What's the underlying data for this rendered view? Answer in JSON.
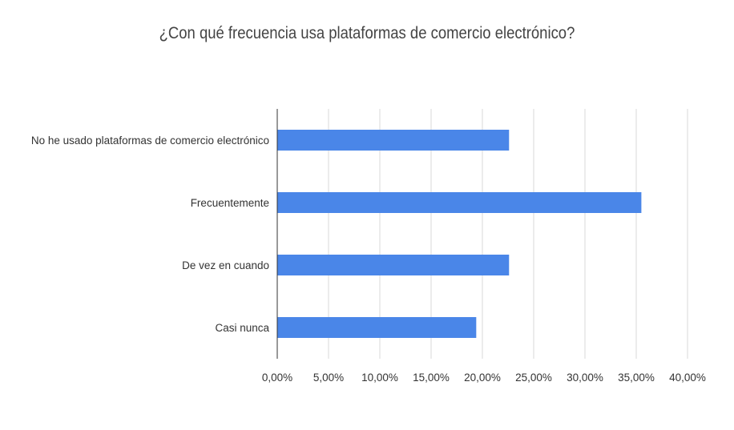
{
  "chart_data": {
    "type": "bar",
    "orientation": "horizontal",
    "title": "¿Con qué frecuencia usa plataformas de comercio electrónico?",
    "categories": [
      "No he usado plataformas de comercio electrónico",
      "Frecuentemente",
      "De vez en cuando",
      "Casi nunca"
    ],
    "values": [
      22.6,
      35.5,
      22.6,
      19.4
    ],
    "xlim": [
      0,
      40
    ],
    "ticks": [
      0,
      5,
      10,
      15,
      20,
      25,
      30,
      35,
      40
    ],
    "tick_labels": [
      "0,00%",
      "5,00%",
      "10,00%",
      "15,00%",
      "20,00%",
      "25,00%",
      "30,00%",
      "35,00%",
      "40,00%"
    ],
    "grid": true,
    "legend": "none",
    "bar_color": "#4a86e8",
    "grid_color": "#d9d9d9"
  }
}
